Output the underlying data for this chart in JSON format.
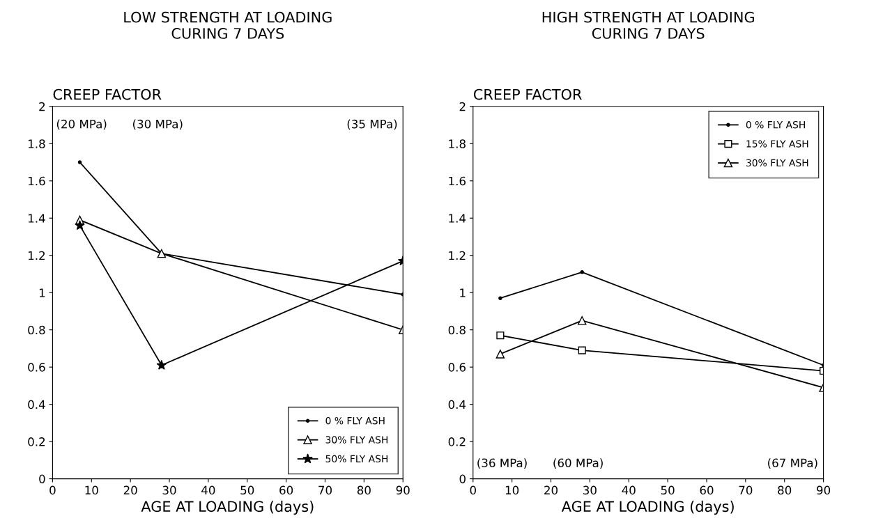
{
  "chart_data": [
    {
      "type": "line",
      "title": "LOW STRENGTH AT LOADING\nCURING 7 DAYS",
      "xlabel": "AGE AT LOADING (days)",
      "ylabel": "CREEP FACTOR",
      "xlim": [
        0,
        90
      ],
      "xticks": [
        0,
        10,
        20,
        30,
        40,
        50,
        60,
        70,
        80,
        90
      ],
      "ylim": [
        0,
        2
      ],
      "yticks": [
        0,
        0.2,
        0.4,
        0.6,
        0.8,
        1,
        1.2,
        1.4,
        1.6,
        1.8,
        2
      ],
      "grid": false,
      "legend": "bottom right",
      "series": [
        {
          "name": "0 % FLY ASH",
          "color": "#000000",
          "x": [
            7,
            28,
            90
          ],
          "values": [
            1.7,
            1.21,
            0.99
          ],
          "marker": "circle"
        },
        {
          "name": "30% FLY ASH",
          "color": "#000000",
          "x": [
            7,
            28,
            90
          ],
          "values": [
            1.39,
            1.21,
            0.8
          ],
          "marker": "triangle"
        },
        {
          "name": "50% FLY ASH",
          "color": "#000000",
          "x": [
            7,
            28,
            90
          ],
          "values": [
            1.36,
            0.61,
            1.17
          ],
          "marker": "star"
        }
      ],
      "annotations": [
        "(20 MPa)",
        "(30 MPa)",
        "(35 MPa)"
      ]
    },
    {
      "type": "line",
      "title": "HIGH STRENGTH AT LOADING\nCURING 7 DAYS",
      "xlabel": "AGE AT LOADING (days)",
      "ylabel": "CREEP FACTOR",
      "xlim": [
        0,
        90
      ],
      "xticks": [
        0,
        10,
        20,
        30,
        40,
        50,
        60,
        70,
        80,
        90
      ],
      "ylim": [
        0,
        2
      ],
      "yticks": [
        0,
        0.2,
        0.4,
        0.6,
        0.8,
        1,
        1.2,
        1.4,
        1.6,
        1.8,
        2
      ],
      "grid": false,
      "legend": "top right",
      "series": [
        {
          "name": "0 % FLY ASH",
          "color": "#000000",
          "x": [
            7,
            28,
            90
          ],
          "values": [
            0.97,
            1.11,
            0.61
          ],
          "marker": "circle"
        },
        {
          "name": "15% FLY ASH",
          "color": "#000000",
          "x": [
            7,
            28,
            90
          ],
          "values": [
            0.77,
            0.69,
            0.58
          ],
          "marker": "square"
        },
        {
          "name": "30% FLY ASH",
          "color": "#000000",
          "x": [
            7,
            28,
            90
          ],
          "values": [
            0.67,
            0.85,
            0.49
          ],
          "marker": "triangle"
        }
      ],
      "annotations": [
        "(36 MPa)",
        "(60 MPa)",
        "(67 MPa)"
      ]
    }
  ]
}
